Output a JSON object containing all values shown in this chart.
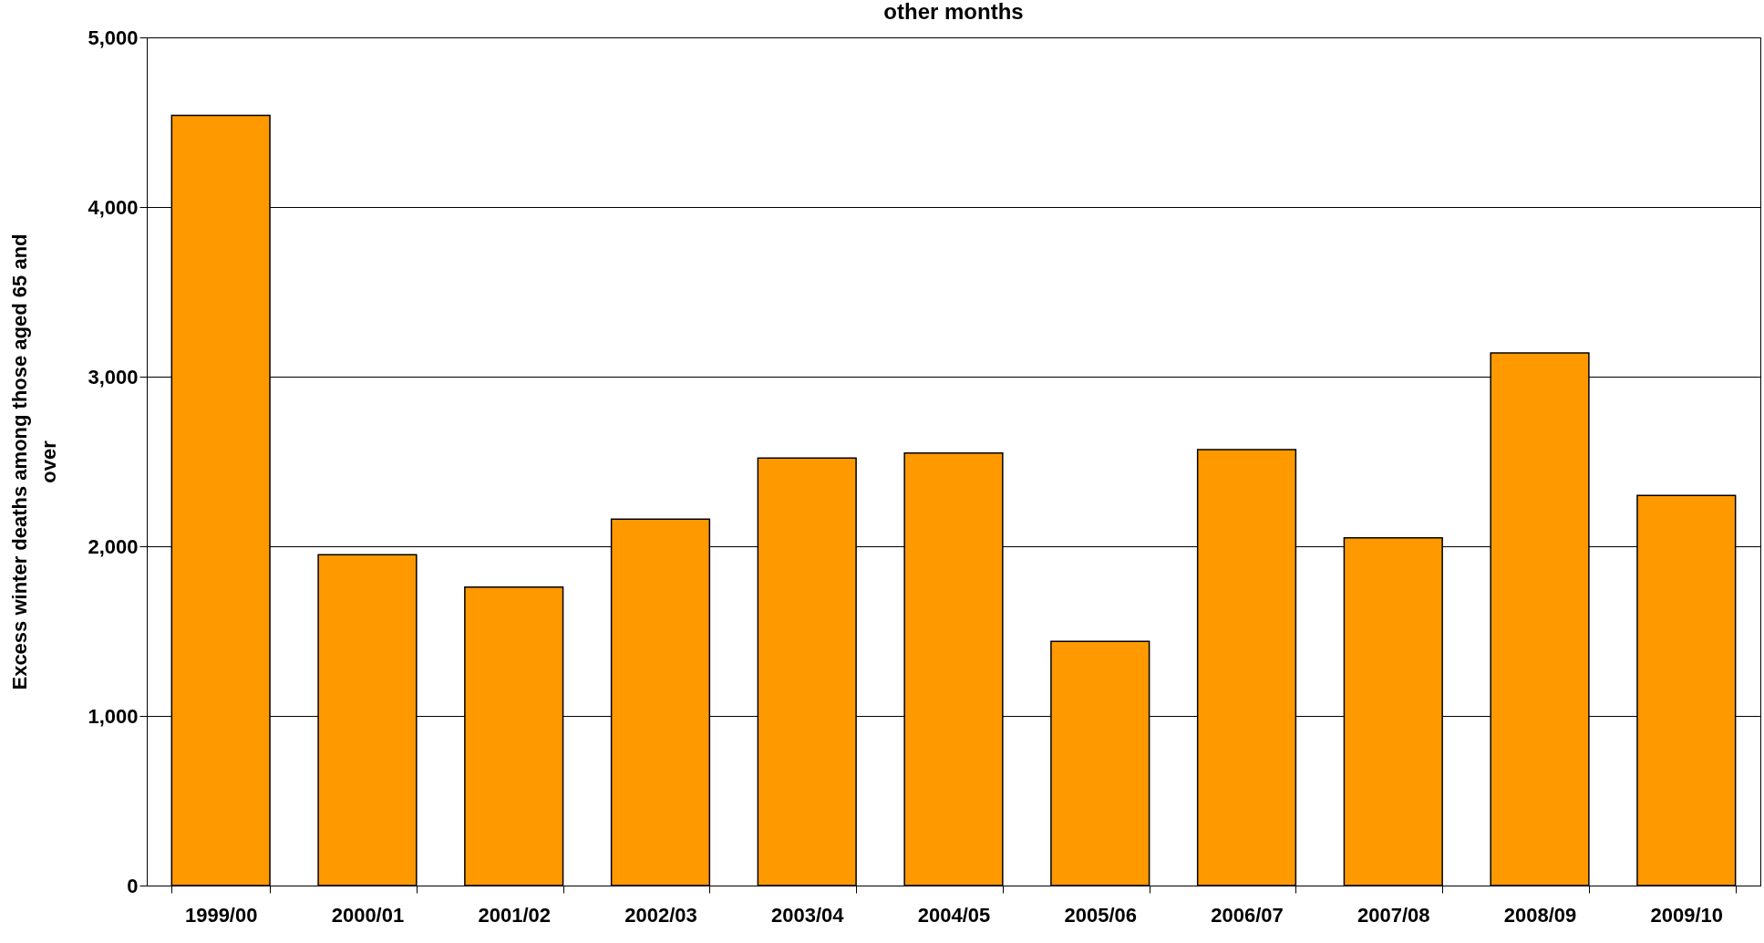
{
  "chart_data": {
    "type": "bar",
    "title": "other months",
    "ylabel": "Excess winter deaths  among those aged 65 and\nover",
    "categories": [
      "1999/00",
      "2000/01",
      "2001/02",
      "2002/03",
      "2003/04",
      "2004/05",
      "2005/06",
      "2006/07",
      "2007/08",
      "2008/09",
      "2009/10"
    ],
    "values": [
      4540,
      1950,
      1760,
      2160,
      2520,
      2550,
      1440,
      2570,
      2050,
      3140,
      2300
    ],
    "color": "#ff9900",
    "ylim": [
      0,
      5000
    ],
    "yticks": [
      {
        "value": 0,
        "label": "0"
      },
      {
        "value": 1000,
        "label": "1,000"
      },
      {
        "value": 2000,
        "label": "2,000"
      },
      {
        "value": 3000,
        "label": "3,000"
      },
      {
        "value": 4000,
        "label": "4,000"
      },
      {
        "value": 5000,
        "label": "5,000"
      }
    ],
    "grid": "y"
  }
}
